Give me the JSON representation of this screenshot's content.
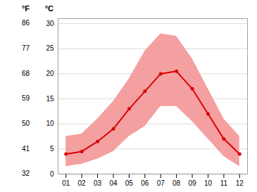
{
  "chart_data": {
    "type": "line",
    "x": [
      1,
      2,
      3,
      4,
      5,
      6,
      7,
      8,
      9,
      10,
      11,
      12
    ],
    "series": [
      {
        "type": "area",
        "color": "#f4a0a0",
        "low": [
          1.5,
          2.0,
          3.0,
          4.5,
          7.5,
          9.5,
          13.5,
          13.5,
          10.5,
          7.0,
          3.5,
          1.5
        ],
        "high": [
          7.5,
          8.0,
          11.0,
          14.5,
          19.0,
          24.5,
          28.0,
          27.5,
          23.0,
          17.0,
          11.0,
          7.5
        ]
      },
      {
        "type": "line",
        "color": "#dd0000",
        "marker": "o",
        "values": [
          4.0,
          4.5,
          6.5,
          9.0,
          13.0,
          16.5,
          20.0,
          20.5,
          17.0,
          12.0,
          7.0,
          4.0
        ]
      }
    ],
    "xlim": [
      0.5,
      12.5
    ],
    "xticks": [
      {
        "value": 1,
        "label": "01"
      },
      {
        "value": 2,
        "label": "02"
      },
      {
        "value": 3,
        "label": "03"
      },
      {
        "value": 4,
        "label": "04"
      },
      {
        "value": 5,
        "label": "05"
      },
      {
        "value": 6,
        "label": "06"
      },
      {
        "value": 7,
        "label": "07"
      },
      {
        "value": 8,
        "label": "08"
      },
      {
        "value": 9,
        "label": "09"
      },
      {
        "value": 10,
        "label": "10"
      },
      {
        "value": 11,
        "label": "11"
      },
      {
        "value": 12,
        "label": "12"
      }
    ],
    "ylabel": "°C",
    "ylim": [
      0,
      31
    ],
    "yticks": [
      0,
      5,
      10,
      15,
      20,
      25,
      30
    ],
    "y2label": "°F",
    "y2lim": [
      32,
      87.8
    ],
    "y2ticks": [
      32,
      41,
      50,
      59,
      68,
      77,
      86
    ],
    "grid": true
  }
}
